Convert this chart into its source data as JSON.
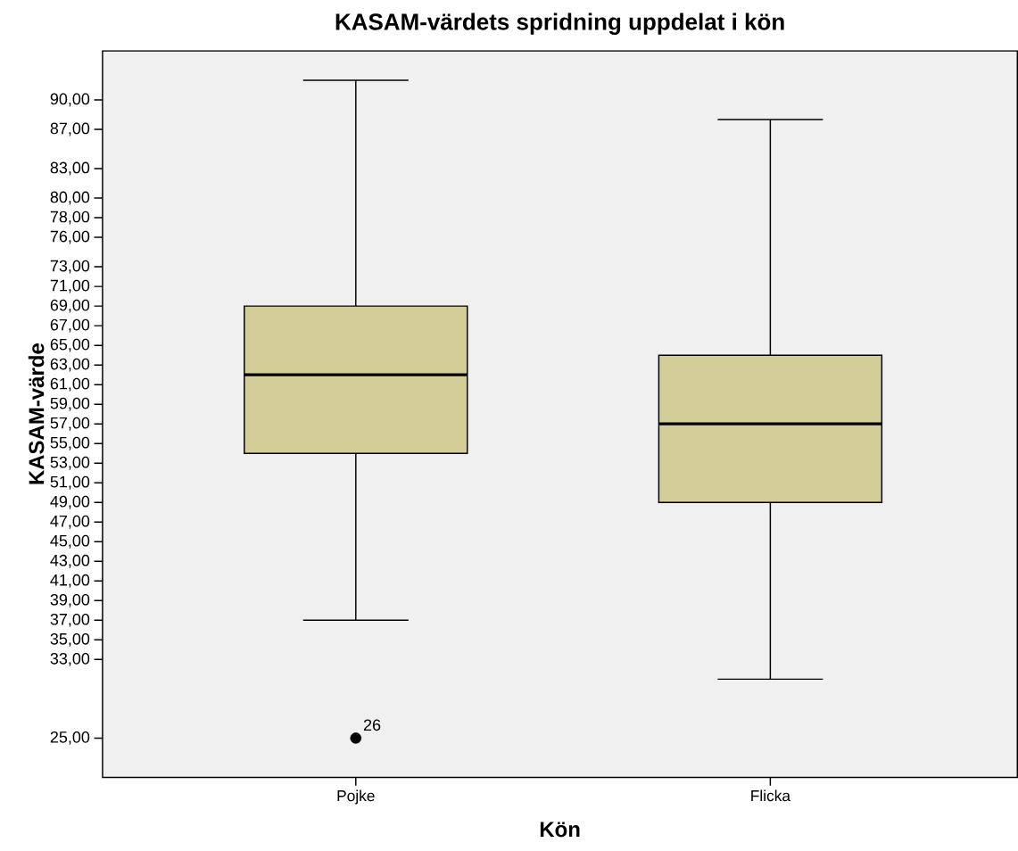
{
  "chart_data": {
    "type": "box",
    "title": "KASAM-värdets spridning uppdelat i kön",
    "xlabel": "Kön",
    "ylabel": "KASAM-värde",
    "categories": [
      "Pojke",
      "Flicka"
    ],
    "color": "#d3cd98",
    "boxes": [
      {
        "low": 37,
        "q1": 54,
        "median": 62,
        "q3": 69,
        "high": 92,
        "outliers": [
          25
        ]
      },
      {
        "low": 31,
        "q1": 49,
        "median": 57,
        "q3": 64,
        "high": 88
      }
    ],
    "ylim": [
      21,
      95
    ],
    "yticks": [
      {
        "value": 25,
        "label": "25,00"
      },
      {
        "value": 33,
        "label": "33,00"
      },
      {
        "value": 35,
        "label": "35,00"
      },
      {
        "value": 37,
        "label": "37,00"
      },
      {
        "value": 39,
        "label": "39,00"
      },
      {
        "value": 41,
        "label": "41,00"
      },
      {
        "value": 43,
        "label": "43,00"
      },
      {
        "value": 45,
        "label": "45,00"
      },
      {
        "value": 47,
        "label": "47,00"
      },
      {
        "value": 49,
        "label": "49,00"
      },
      {
        "value": 51,
        "label": "51,00"
      },
      {
        "value": 53,
        "label": "53,00"
      },
      {
        "value": 55,
        "label": "55,00"
      },
      {
        "value": 57,
        "label": "57,00"
      },
      {
        "value": 59,
        "label": "59,00"
      },
      {
        "value": 61,
        "label": "61,00"
      },
      {
        "value": 63,
        "label": "63,00"
      },
      {
        "value": 65,
        "label": "65,00"
      },
      {
        "value": 67,
        "label": "67,00"
      },
      {
        "value": 69,
        "label": "69,00"
      },
      {
        "value": 71,
        "label": "71,00"
      },
      {
        "value": 73,
        "label": "73,00"
      },
      {
        "value": 76,
        "label": "76,00"
      },
      {
        "value": 78,
        "label": "78,00"
      },
      {
        "value": 80,
        "label": "80,00"
      },
      {
        "value": 83,
        "label": "83,00"
      },
      {
        "value": 87,
        "label": "87,00"
      },
      {
        "value": 90,
        "label": "90,00"
      }
    ],
    "annotations": [
      "26"
    ]
  }
}
